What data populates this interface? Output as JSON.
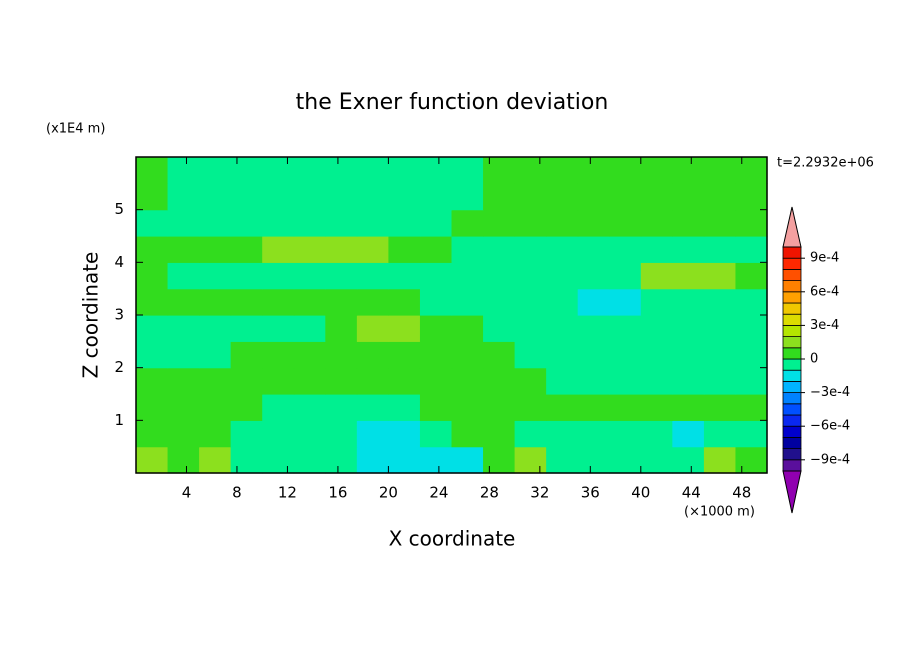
{
  "chart_data": {
    "type": "contour",
    "title": "the Exner function deviation",
    "xlabel": "X coordinate",
    "ylabel": "Z coordinate",
    "xunit": "(×1000 m)",
    "yunit": "(x1E4 m)",
    "time_label": "t=2.2932e+06",
    "xlim": [
      0,
      50
    ],
    "ylim": [
      0,
      6
    ],
    "xticks": [
      4,
      8,
      12,
      16,
      20,
      24,
      28,
      32,
      36,
      40,
      44,
      48
    ],
    "yticks": [
      1,
      2,
      3,
      4,
      5
    ],
    "x": [
      1.25,
      3.75,
      6.25,
      8.75,
      11.25,
      13.75,
      16.25,
      18.75,
      21.25,
      23.75,
      26.25,
      28.75,
      31.25,
      33.75,
      36.25,
      38.75,
      41.25,
      43.75,
      46.25,
      48.75
    ],
    "y": [
      0.25,
      0.75,
      1.25,
      1.75,
      2.25,
      2.75,
      3.25,
      3.75,
      4.25,
      4.75,
      5.25,
      5.75
    ],
    "z": [
      [
        0.00015,
        5e-05,
        0.00015,
        -5e-05,
        -5e-05,
        -5e-05,
        -5e-05,
        -0.00015,
        -0.00015,
        -0.00015,
        -0.00015,
        5e-05,
        0.00015,
        -5e-05,
        -5e-05,
        -5e-05,
        -5e-05,
        -5e-05,
        0.00015,
        5e-05
      ],
      [
        5e-05,
        5e-05,
        5e-05,
        -5e-05,
        -5e-05,
        -5e-05,
        -5e-05,
        -0.00015,
        -0.00015,
        -5e-05,
        5e-05,
        5e-05,
        -5e-05,
        -5e-05,
        -5e-05,
        -5e-05,
        -5e-05,
        -0.00015,
        -5e-05,
        -5e-05
      ],
      [
        5e-05,
        5e-05,
        5e-05,
        5e-05,
        -5e-05,
        -5e-05,
        -5e-05,
        -5e-05,
        -5e-05,
        5e-05,
        5e-05,
        5e-05,
        5e-05,
        5e-05,
        5e-05,
        5e-05,
        5e-05,
        5e-05,
        5e-05,
        5e-05
      ],
      [
        5e-05,
        5e-05,
        5e-05,
        5e-05,
        5e-05,
        5e-05,
        5e-05,
        5e-05,
        5e-05,
        5e-05,
        5e-05,
        5e-05,
        5e-05,
        -5e-05,
        -5e-05,
        -5e-05,
        -5e-05,
        -5e-05,
        -5e-05,
        -5e-05
      ],
      [
        -5e-05,
        -5e-05,
        -5e-05,
        5e-05,
        5e-05,
        5e-05,
        5e-05,
        5e-05,
        5e-05,
        5e-05,
        5e-05,
        5e-05,
        -5e-05,
        -5e-05,
        -5e-05,
        -5e-05,
        -5e-05,
        -5e-05,
        -5e-05,
        -5e-05
      ],
      [
        -5e-05,
        -5e-05,
        -5e-05,
        -5e-05,
        -5e-05,
        -5e-05,
        5e-05,
        0.00015,
        0.00015,
        5e-05,
        5e-05,
        -5e-05,
        -5e-05,
        -5e-05,
        -5e-05,
        -5e-05,
        -5e-05,
        -5e-05,
        -5e-05,
        -5e-05
      ],
      [
        5e-05,
        5e-05,
        5e-05,
        5e-05,
        5e-05,
        5e-05,
        5e-05,
        5e-05,
        5e-05,
        -5e-05,
        -5e-05,
        -5e-05,
        -5e-05,
        -5e-05,
        -0.00015,
        -0.00015,
        -5e-05,
        -5e-05,
        -5e-05,
        -5e-05
      ],
      [
        5e-05,
        -5e-05,
        -5e-05,
        -5e-05,
        -5e-05,
        -5e-05,
        -5e-05,
        -5e-05,
        -5e-05,
        -5e-05,
        -5e-05,
        -5e-05,
        -5e-05,
        -5e-05,
        -5e-05,
        -5e-05,
        0.00015,
        0.00015,
        0.00015,
        5e-05
      ],
      [
        5e-05,
        5e-05,
        5e-05,
        5e-05,
        0.00015,
        0.00015,
        0.00015,
        0.00015,
        5e-05,
        5e-05,
        -5e-05,
        -5e-05,
        -5e-05,
        -5e-05,
        -5e-05,
        -5e-05,
        -5e-05,
        -5e-05,
        -5e-05,
        -5e-05
      ],
      [
        -5e-05,
        -5e-05,
        -5e-05,
        -5e-05,
        -5e-05,
        -5e-05,
        -5e-05,
        -5e-05,
        -5e-05,
        -5e-05,
        5e-05,
        5e-05,
        5e-05,
        5e-05,
        5e-05,
        5e-05,
        5e-05,
        5e-05,
        5e-05,
        5e-05
      ],
      [
        5e-05,
        -5e-05,
        -5e-05,
        -5e-05,
        -5e-05,
        -5e-05,
        -5e-05,
        -5e-05,
        -5e-05,
        -5e-05,
        -5e-05,
        5e-05,
        5e-05,
        5e-05,
        5e-05,
        5e-05,
        5e-05,
        5e-05,
        5e-05,
        5e-05
      ],
      [
        5e-05,
        -5e-05,
        -5e-05,
        -5e-05,
        -5e-05,
        -5e-05,
        -5e-05,
        -5e-05,
        -5e-05,
        -5e-05,
        -5e-05,
        5e-05,
        5e-05,
        5e-05,
        5e-05,
        5e-05,
        5e-05,
        5e-05,
        5e-05,
        5e-05
      ]
    ],
    "colorbar": {
      "levels": [
        -0.001,
        -0.0009,
        -0.0008,
        -0.0007,
        -0.0006,
        -0.0005,
        -0.0004,
        -0.0003,
        -0.0002,
        -0.0001,
        0,
        0.0001,
        0.0002,
        0.0003,
        0.0004,
        0.0005,
        0.0006,
        0.0007,
        0.0008,
        0.0009,
        0.001
      ],
      "colors": [
        "#5a0f9c",
        "#20108c",
        "#0000a0",
        "#0000cc",
        "#0a28f0",
        "#0050ff",
        "#0082ff",
        "#00b4ff",
        "#00e0e6",
        "#00f090",
        "#32dc1e",
        "#8ce01e",
        "#b4e600",
        "#dcdc00",
        "#f0c800",
        "#ffa000",
        "#ff8000",
        "#ff5000",
        "#ff2800",
        "#f01400"
      ],
      "under_color": "#9000b0",
      "over_color": "#f4a0a0",
      "ticks": [
        {
          "value": -0.0009,
          "label": "−9e-4"
        },
        {
          "value": -0.0006,
          "label": "−6e-4"
        },
        {
          "value": -0.0003,
          "label": "−3e-4"
        },
        0,
        {
          "value": 0.0003,
          "label": "3e-4"
        },
        {
          "value": 0.0006,
          "label": "6e-4"
        },
        {
          "value": 0.0009,
          "label": "9e-4"
        }
      ]
    }
  }
}
